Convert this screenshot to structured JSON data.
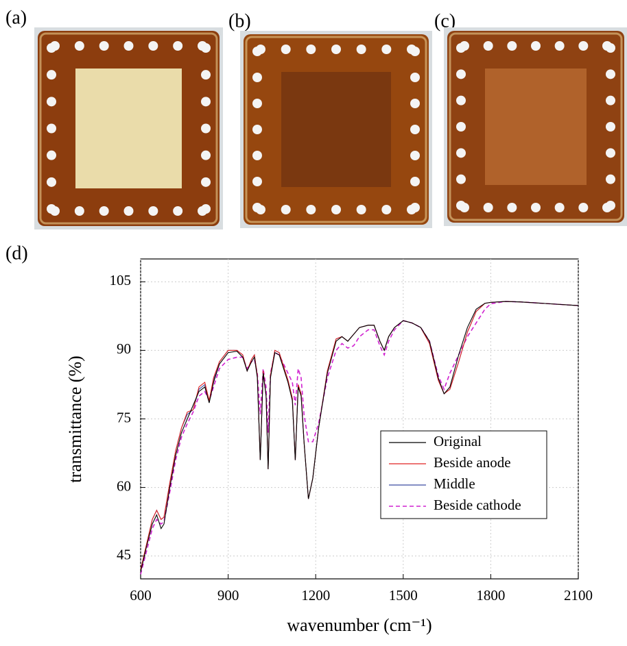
{
  "panel_labels": [
    "(a)",
    "(b)",
    "(c)",
    "(d)"
  ],
  "chart_data": {
    "type": "line",
    "xlabel": "wavenumber (cm⁻¹)",
    "ylabel": "transmittance (%)",
    "xlim": [
      600,
      2100
    ],
    "ylim": [
      40,
      110
    ],
    "xticks": [
      600,
      900,
      1200,
      1500,
      1800,
      2100
    ],
    "yticks": [
      45,
      60,
      75,
      90,
      105
    ],
    "grid": true,
    "legend": "lower right",
    "x": [
      600,
      620,
      640,
      655,
      670,
      680,
      700,
      720,
      740,
      760,
      780,
      800,
      820,
      835,
      850,
      870,
      900,
      930,
      950,
      965,
      980,
      990,
      1000,
      1010,
      1020,
      1030,
      1037,
      1045,
      1060,
      1075,
      1090,
      1105,
      1120,
      1130,
      1140,
      1150,
      1160,
      1175,
      1190,
      1210,
      1240,
      1270,
      1290,
      1310,
      1330,
      1350,
      1380,
      1400,
      1420,
      1435,
      1450,
      1470,
      1500,
      1530,
      1560,
      1590,
      1620,
      1640,
      1660,
      1690,
      1720,
      1750,
      1780,
      1800,
      1850,
      1900,
      2000,
      2100
    ],
    "series": [
      {
        "name": "Original",
        "color": "#000000",
        "dash": false,
        "values": [
          41.5,
          47,
          52,
          54,
          51,
          52,
          60,
          67,
          72,
          75,
          78,
          81,
          82,
          78.5,
          83,
          87,
          89.5,
          89.8,
          88.5,
          85.5,
          87.5,
          88.5,
          84,
          66,
          85,
          80,
          64,
          84,
          89.5,
          89,
          86,
          83,
          79,
          66,
          82,
          80,
          70,
          57.5,
          62,
          73,
          85,
          92,
          93,
          92,
          93.5,
          95,
          95.5,
          95.5,
          92,
          90,
          93,
          95,
          96.5,
          96,
          95,
          92,
          84,
          80.5,
          82,
          89,
          95,
          99,
          100.3,
          100.5,
          100.7,
          100.6,
          100.2,
          99.8
        ]
      },
      {
        "name": "Beside anode",
        "color": "#e02020",
        "dash": false,
        "values": [
          42,
          47.5,
          53,
          55,
          53,
          53.5,
          61,
          68,
          73,
          76.5,
          77,
          82,
          83,
          79,
          84,
          87.5,
          90,
          90,
          89,
          85.5,
          88,
          89,
          84.5,
          66,
          85.5,
          80,
          64,
          84.5,
          90,
          89.5,
          86.5,
          83.5,
          79.5,
          66,
          82.5,
          80.5,
          70,
          57.5,
          62,
          73,
          85.5,
          92.5,
          93,
          92,
          93.5,
          95,
          95.5,
          95.5,
          92,
          90,
          93,
          95,
          96.5,
          96,
          95,
          91.5,
          83.5,
          80.5,
          81.5,
          87.5,
          94,
          98.5,
          100.3,
          100.5,
          100.7,
          100.6,
          100.2,
          99.8
        ]
      },
      {
        "name": "Middle",
        "color": "#3a4aa0",
        "dash": false,
        "values": [
          42,
          47.5,
          53,
          55,
          53,
          53.5,
          61,
          68,
          73,
          76,
          77,
          81.5,
          82.5,
          79,
          83.5,
          87.5,
          90,
          90,
          89,
          85.5,
          88,
          89,
          84.5,
          66,
          85.5,
          80,
          64,
          84.5,
          90,
          89.5,
          86.5,
          83.5,
          79.5,
          66,
          82.5,
          80.5,
          70,
          57.5,
          62,
          73,
          85.5,
          92.5,
          93,
          92,
          93.5,
          95,
          95.5,
          95.5,
          92,
          90,
          93,
          95,
          96.5,
          96,
          95,
          91.5,
          83.5,
          80.5,
          81.5,
          87.5,
          94,
          98.5,
          100.3,
          100.5,
          100.7,
          100.6,
          100.2,
          99.8
        ]
      },
      {
        "name": "Beside cathode",
        "color": "#d020d0",
        "dash": true,
        "values": [
          41,
          46,
          51,
          53,
          52,
          52.5,
          59,
          66,
          71,
          74,
          76.5,
          80,
          81,
          79,
          82,
          86,
          88,
          88.5,
          88.5,
          86,
          87.5,
          88,
          85,
          76,
          86,
          82,
          72,
          85,
          89.5,
          89,
          87,
          85,
          83,
          78,
          86,
          84,
          76,
          70,
          70,
          74,
          84,
          90,
          91.5,
          90.5,
          91,
          93,
          94.5,
          94.5,
          91,
          89,
          92,
          94.5,
          96.5,
          96,
          95,
          92,
          84.5,
          81.5,
          85,
          89,
          93,
          96,
          99,
          100.2,
          100.7,
          100.6,
          100.2,
          99.8
        ]
      }
    ]
  }
}
